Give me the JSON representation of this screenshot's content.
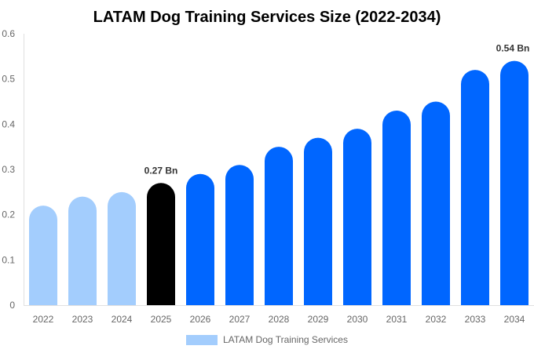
{
  "chart_data": {
    "type": "bar",
    "title": "LATAM Dog Training Services Size (2022-2034)",
    "xlabel": "",
    "ylabel": "",
    "ylim": [
      0,
      0.6
    ],
    "yticks": [
      "0",
      "0.1",
      "0.2",
      "0.3",
      "0.4",
      "0.5",
      "0.6"
    ],
    "categories": [
      "2022",
      "2023",
      "2024",
      "2025",
      "2026",
      "2027",
      "2028",
      "2029",
      "2030",
      "2031",
      "2032",
      "2033",
      "2034"
    ],
    "series": [
      {
        "name": "LATAM Dog Training Services",
        "values": [
          0.22,
          0.24,
          0.25,
          0.27,
          0.29,
          0.31,
          0.35,
          0.37,
          0.39,
          0.43,
          0.45,
          0.52,
          0.54
        ]
      }
    ],
    "bar_colors": [
      "#a3cdfd",
      "#a3cdfd",
      "#a3cdfd",
      "#000000",
      "#0066ff",
      "#0066ff",
      "#0066ff",
      "#0066ff",
      "#0066ff",
      "#0066ff",
      "#0066ff",
      "#0066ff",
      "#0066ff"
    ],
    "annotations": [
      {
        "category": "2025",
        "text": "0.27 Bn"
      },
      {
        "category": "2034",
        "text": "0.54 Bn"
      }
    ],
    "legend": {
      "position": "bottom",
      "label": "LATAM Dog Training Services",
      "color": "#a3cdfd"
    },
    "grid": false
  }
}
